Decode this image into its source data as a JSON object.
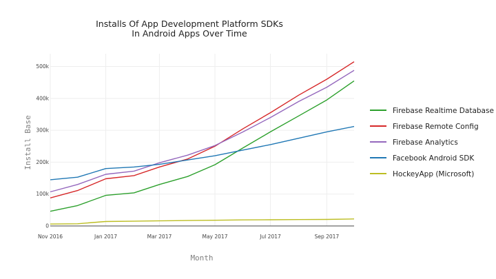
{
  "chart_data": {
    "type": "line",
    "title_lines": [
      "Installs Of App Development Platform SDKs",
      "In Android Apps Over Time"
    ],
    "xlabel": "Month",
    "ylabel": "Install Base",
    "x": [
      "2016-11-01",
      "2016-12-01",
      "2017-01-01",
      "2017-02-01",
      "2017-03-01",
      "2017-04-01",
      "2017-05-01",
      "2017-06-01",
      "2017-07-01",
      "2017-08-01",
      "2017-09-01",
      "2017-10-01"
    ],
    "x_ticks": [
      {
        "value": "2016-11-01",
        "label": "Nov 2016"
      },
      {
        "value": "2017-01-01",
        "label": "Jan 2017"
      },
      {
        "value": "2017-03-01",
        "label": "Mar 2017"
      },
      {
        "value": "2017-05-01",
        "label": "May 2017"
      },
      {
        "value": "2017-07-01",
        "label": "Jul 2017"
      },
      {
        "value": "2017-09-01",
        "label": "Sep 2017"
      }
    ],
    "ylim": [
      0,
      540000
    ],
    "y_ticks": [
      {
        "value": 0,
        "label": "0"
      },
      {
        "value": 100000,
        "label": "100k"
      },
      {
        "value": 200000,
        "label": "200k"
      },
      {
        "value": 300000,
        "label": "300k"
      },
      {
        "value": 400000,
        "label": "400k"
      },
      {
        "value": 500000,
        "label": "500k"
      }
    ],
    "grid": true,
    "legend_position": "right",
    "series": [
      {
        "name": "Firebase Realtime Database",
        "color": "#2ca02c",
        "values": [
          46000,
          64000,
          96000,
          104000,
          130000,
          155000,
          192000,
          245000,
          295000,
          345000,
          395000,
          455000
        ]
      },
      {
        "name": "Firebase Remote Config",
        "color": "#d62728",
        "values": [
          88000,
          111000,
          148000,
          158000,
          185000,
          210000,
          250000,
          305000,
          355000,
          410000,
          460000,
          515000
        ]
      },
      {
        "name": "Firebase Analytics",
        "color": "#9467bd",
        "values": [
          107000,
          130000,
          162000,
          172000,
          198000,
          222000,
          252000,
          295000,
          340000,
          390000,
          435000,
          488000
        ]
      },
      {
        "name": "Facebook Android SDK",
        "color": "#1f77b4",
        "values": [
          145000,
          153000,
          180000,
          185000,
          193000,
          207000,
          220000,
          238000,
          255000,
          275000,
          295000,
          312000
        ]
      },
      {
        "name": "HockeyApp (Microsoft)",
        "color": "#bcbd22",
        "values": [
          6000,
          7000,
          14000,
          15000,
          16000,
          17000,
          18000,
          19000,
          19500,
          20000,
          20500,
          22000
        ]
      }
    ]
  }
}
